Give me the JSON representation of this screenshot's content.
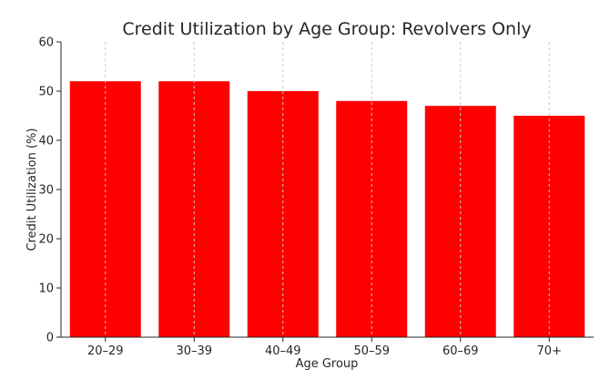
{
  "chart_data": {
    "type": "bar",
    "title": "Credit Utilization by Age Group: Revolvers Only",
    "xlabel": "Age Group",
    "ylabel": "Credit Utilization (%)",
    "categories": [
      "20–29",
      "30–39",
      "40–49",
      "50–59",
      "60–69",
      "70+"
    ],
    "values": [
      52,
      52,
      50,
      48,
      47,
      45
    ],
    "ylim": [
      0,
      60
    ],
    "yticks": [
      0,
      10,
      20,
      30,
      40,
      50,
      60
    ],
    "grid": "vertical dashed at categories",
    "bar_color": "#ff0000",
    "legend": "none"
  }
}
